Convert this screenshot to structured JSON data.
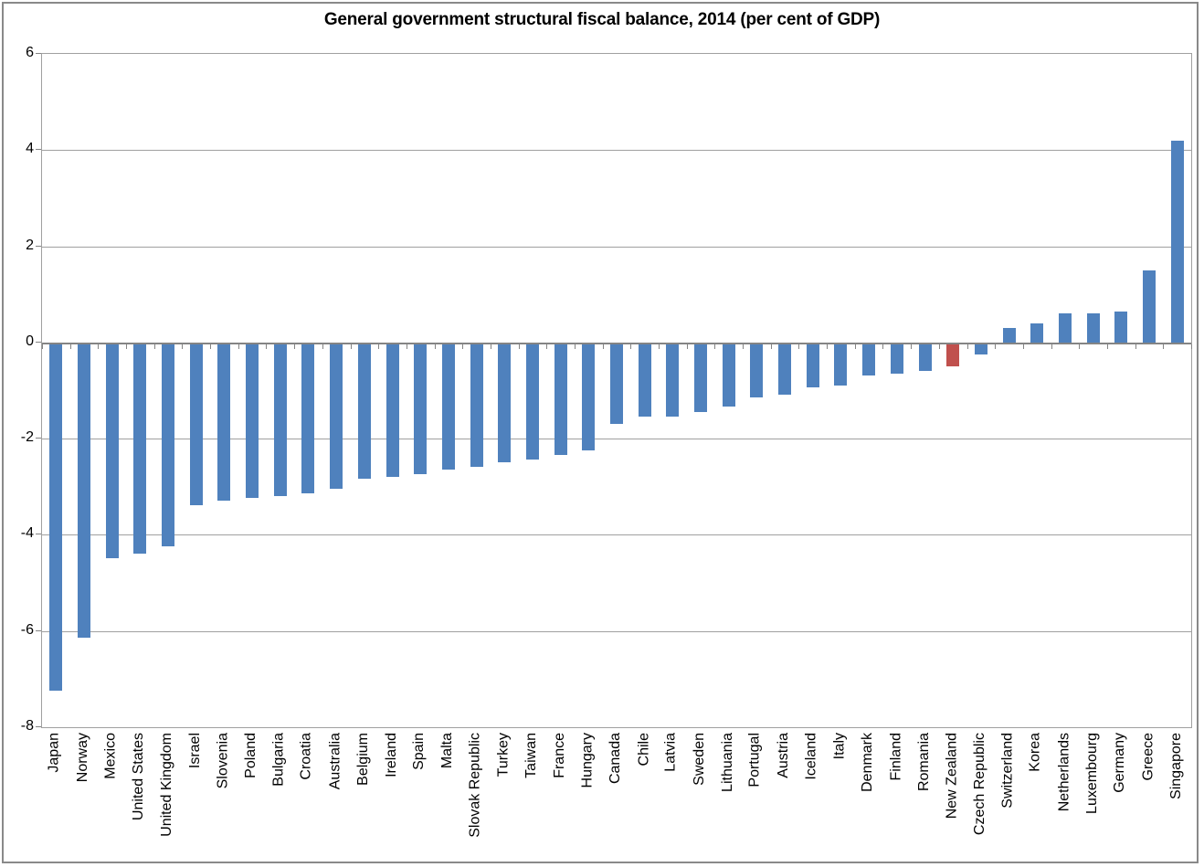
{
  "chart_data": {
    "type": "bar",
    "title": "General government structural fiscal balance, 2014 (per cent of GDP)",
    "xlabel": "",
    "ylabel": "",
    "ylim": [
      -8,
      6
    ],
    "yticks": [
      6,
      4,
      2,
      0,
      -2,
      -4,
      -6,
      -8
    ],
    "grid": true,
    "legend": "none",
    "bar_color": "#4F81BD",
    "highlight_color": "#C0504D",
    "highlight_category": "New Zealand",
    "categories": [
      "Japan",
      "Norway",
      "Mexico",
      "United States",
      "United Kingdom",
      "Israel",
      "Slovenia",
      "Poland",
      "Bulgaria",
      "Croatia",
      "Australia",
      "Belgium",
      "Ireland",
      "Spain",
      "Malta",
      "Slovak Republic",
      "Turkey",
      "Taiwan",
      "France",
      "Hungary",
      "Canada",
      "Chile",
      "Latvia",
      "Sweden",
      "Lithuania",
      "Portugal",
      "Austria",
      "Iceland",
      "Italy",
      "Denmark",
      "Finland",
      "Romania",
      "New Zealand",
      "Czech Republic",
      "Switzerland",
      "Korea",
      "Netherlands",
      "Luxembourg",
      "Germany",
      "Greece",
      "Singapore"
    ],
    "values": [
      -7.2,
      -6.1,
      -4.45,
      -4.35,
      -4.2,
      -3.35,
      -3.25,
      -3.2,
      -3.15,
      -3.1,
      -3.0,
      -2.8,
      -2.75,
      -2.7,
      -2.6,
      -2.55,
      -2.45,
      -2.4,
      -2.3,
      -2.2,
      -1.65,
      -1.5,
      -1.5,
      -1.4,
      -1.3,
      -1.1,
      -1.05,
      -0.9,
      -0.85,
      -0.65,
      -0.6,
      -0.55,
      -0.45,
      -0.2,
      0.3,
      0.4,
      0.6,
      0.6,
      0.65,
      1.5,
      4.2
    ]
  }
}
